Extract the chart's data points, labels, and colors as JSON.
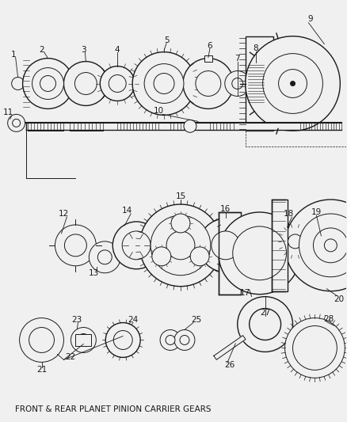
{
  "title": "FRONT & REAR PLANET PINION CARRIER GEARS",
  "bg_color": "#f0f0f0",
  "line_color": "#1a1a1a",
  "label_color": "#1a1a1a",
  "fig_w": 4.38,
  "fig_h": 5.33,
  "dpi": 100
}
